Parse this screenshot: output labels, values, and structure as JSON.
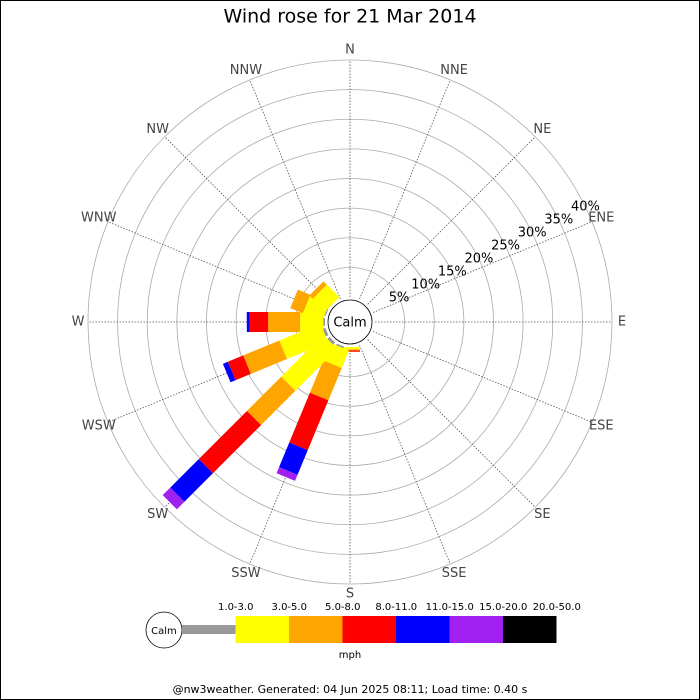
{
  "chart_data": {
    "type": "windrose",
    "title": "Wind rose for 21 Mar 2014",
    "directions": [
      "N",
      "NNE",
      "NE",
      "ENE",
      "E",
      "ESE",
      "SE",
      "SSE",
      "S",
      "SSW",
      "SW",
      "WSW",
      "W",
      "WNW",
      "NW",
      "NNW"
    ],
    "rlim": [
      0,
      40
    ],
    "rticks": [
      {
        "value": 5,
        "label": "5%"
      },
      {
        "value": 10,
        "label": "10%"
      },
      {
        "value": 15,
        "label": "15%"
      },
      {
        "value": 20,
        "label": "20%"
      },
      {
        "value": 25,
        "label": "25%"
      },
      {
        "value": 30,
        "label": "30%"
      },
      {
        "value": 35,
        "label": "35%"
      },
      {
        "value": 40,
        "label": "40%"
      }
    ],
    "calm_label": "Calm",
    "legend_unit": "mph",
    "series": [
      {
        "name": "1.0-3.0",
        "color": "#999999",
        "values": [
          0,
          0,
          0,
          0,
          0,
          0,
          0,
          0,
          0,
          0.3,
          0.5,
          0.5,
          0.3,
          0.2,
          0,
          0
        ]
      },
      {
        "name": "3.0-5.0",
        "color": "#ffff00",
        "values": [
          0,
          0,
          0,
          0,
          0,
          0,
          0,
          0,
          0.4,
          3.2,
          10,
          7.5,
          3.9,
          3.5,
          3.0,
          0
        ]
      },
      {
        "name": "5.0-8.0",
        "color": "#ffa500",
        "values": [
          0,
          0,
          0,
          0,
          0,
          0,
          0,
          0,
          0.2,
          5.9,
          8.2,
          6.6,
          5.4,
          2.3,
          0.8,
          0
        ]
      },
      {
        "name": "8.0-11.0",
        "color": "#ff0000",
        "values": [
          0,
          0,
          0,
          0,
          0,
          0,
          0,
          0,
          0.2,
          9.1,
          11.5,
          2.8,
          3.1,
          0,
          0,
          0
        ]
      },
      {
        "name": "11.0-15.0",
        "color": "#0000ff",
        "values": [
          0,
          0,
          0,
          0,
          0,
          0,
          0,
          0,
          0,
          4.5,
          6.8,
          0.9,
          0.5,
          0,
          0,
          0
        ]
      },
      {
        "name": "15.0-20.0",
        "color": "#a020f0",
        "values": [
          0,
          0,
          0,
          0,
          0,
          0,
          0,
          0,
          0,
          1.1,
          1.8,
          0,
          0,
          0,
          0,
          0
        ]
      },
      {
        "name": "20.0-50.0",
        "color": "#000000",
        "values": [
          0,
          0,
          0,
          0,
          0,
          0,
          0,
          0,
          0,
          0,
          0,
          0,
          0,
          0,
          0,
          0
        ]
      }
    ]
  },
  "footer": "@nw3weather. Generated: 04 Jun 2025 08:11; Load time: 0.40 s"
}
